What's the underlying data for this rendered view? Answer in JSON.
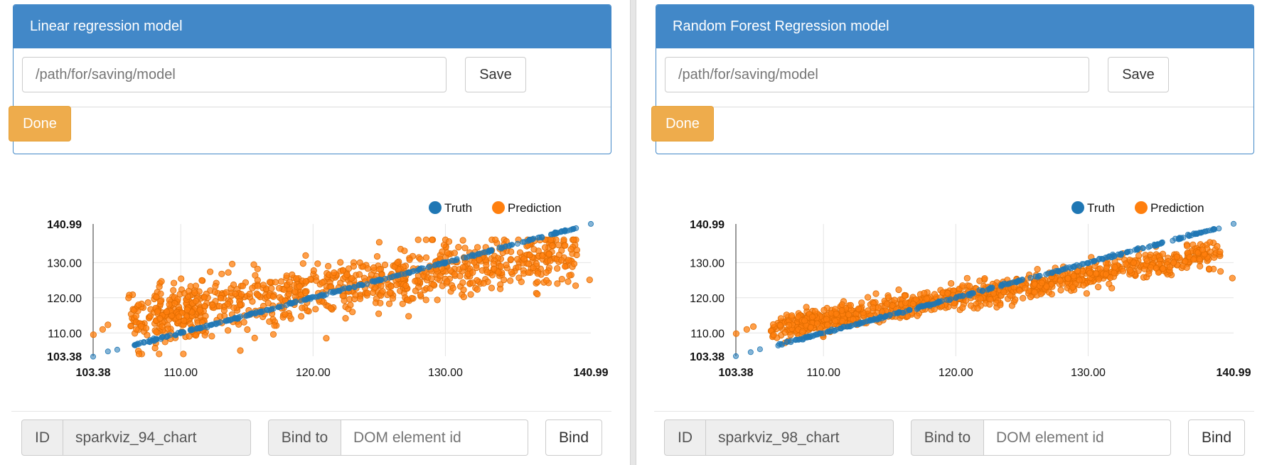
{
  "panels": [
    {
      "title": "Linear regression model",
      "path_placeholder": "/path/for/saving/model",
      "save_label": "Save",
      "done_label": "Done",
      "id_label": "ID",
      "id_value": "sparkviz_94_chart",
      "bind_to_label": "Bind to",
      "dom_placeholder": "DOM element id",
      "bind_label": "Bind"
    },
    {
      "title": "Random Forest Regression model",
      "path_placeholder": "/path/for/saving/model",
      "save_label": "Save",
      "done_label": "Done",
      "id_label": "ID",
      "id_value": "sparkviz_98_chart",
      "bind_to_label": "Bind to",
      "dom_placeholder": "DOM element id",
      "bind_label": "Bind"
    }
  ],
  "colors": {
    "accent": "#4288c8",
    "done": "#eeac4c",
    "truth": "#1f77b4",
    "prediction": "#ff7f0e"
  },
  "chart_data": [
    {
      "type": "scatter",
      "legend": [
        "Truth",
        "Prediction"
      ],
      "legend_position": "top-right",
      "xlim": [
        103.38,
        140.99
      ],
      "ylim": [
        103.38,
        140.99
      ],
      "xticks": [
        "103.38",
        "110.00",
        "120.00",
        "130.00",
        "140.99"
      ],
      "yticks": [
        "140.99",
        "130.00",
        "120.00",
        "110.00",
        "103.38"
      ],
      "grid": true,
      "series": [
        {
          "name": "Truth",
          "relation": "y = x",
          "x_samples": [
            103.38,
            104.5,
            105.2,
            106.8,
            108.5,
            110.0,
            112.0,
            115.0,
            118.0,
            120.0,
            122.0,
            125.0,
            128.0,
            130.0,
            132.0,
            135.0,
            137.0,
            139.0,
            140.99
          ]
        },
        {
          "name": "Prediction",
          "approx_fit": {
            "intercept": 54.5,
            "slope": 0.56,
            "noise": 3.8
          },
          "points": [
            [
              103.4,
              109.5
            ],
            [
              104.1,
              111.0
            ],
            [
              104.5,
              112.3
            ],
            [
              110.2,
              104.0
            ],
            [
              114.5,
              105.0
            ],
            [
              121.0,
              108.5
            ],
            [
              140.9,
              125.1
            ],
            [
              139.5,
              126.5
            ],
            [
              125.0,
              135.8
            ],
            [
              130.0,
              136.5
            ]
          ]
        }
      ]
    },
    {
      "type": "scatter",
      "legend": [
        "Truth",
        "Prediction"
      ],
      "legend_position": "top-right",
      "xlim": [
        103.38,
        140.99
      ],
      "ylim": [
        103.38,
        140.99
      ],
      "xticks": [
        "103.38",
        "110.00",
        "120.00",
        "130.00",
        "140.99"
      ],
      "yticks": [
        "140.99",
        "130.00",
        "120.00",
        "110.00",
        "103.38"
      ],
      "grid": true,
      "series": [
        {
          "name": "Truth",
          "relation": "y = x",
          "x_samples": [
            103.38,
            104.5,
            105.2,
            106.8,
            108.5,
            110.0,
            112.0,
            115.0,
            118.0,
            120.0,
            122.0,
            125.0,
            128.0,
            130.0,
            132.0,
            135.0,
            137.0,
            139.0,
            140.99
          ]
        },
        {
          "name": "Prediction",
          "approx_fit": {
            "intercept": 44.5,
            "slope": 0.63,
            "noise": 1.8
          },
          "points": [
            [
              103.4,
              109.8
            ],
            [
              104.2,
              111.0
            ],
            [
              104.7,
              111.8
            ],
            [
              140.9,
              125.6
            ],
            [
              140.0,
              127.5
            ],
            [
              139.0,
              130.5
            ]
          ]
        }
      ]
    }
  ]
}
